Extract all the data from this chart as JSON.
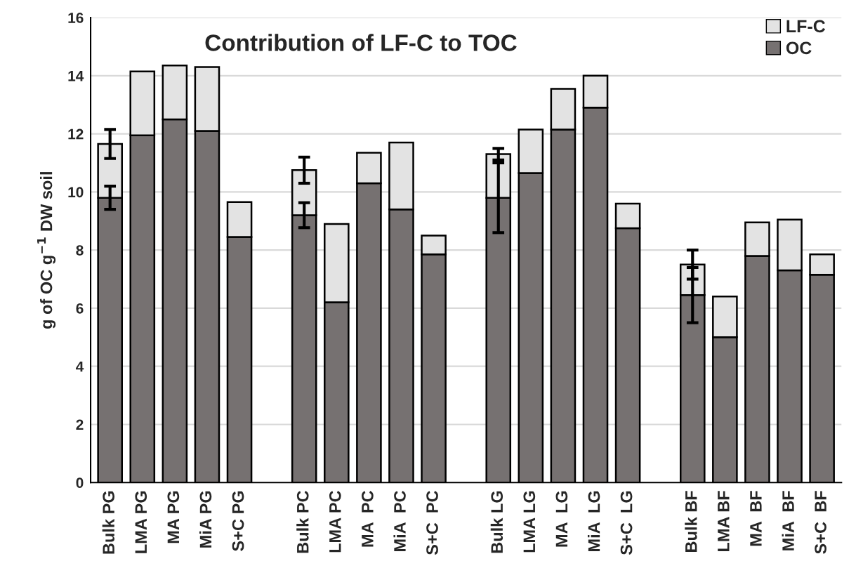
{
  "chart_data": {
    "type": "bar",
    "title": "Contribution of LF-C to TOC",
    "ylabel": "g of OC g$^{−1}$ DW soil",
    "categories": [
      "Bulk PG",
      "LMA PG",
      "MA PG",
      "MiA PG",
      "S+C PG",
      null,
      "Bulk PC",
      "LMA PC",
      "MA  PC",
      "MiA  PC",
      "S+C  PC",
      null,
      "Bulk LG",
      "LMA LG",
      "MA  LG",
      "MiA  LG",
      "S+C  LG",
      null,
      "Bulk BF",
      "LMA BF",
      "MA  BF",
      "MiA  BF",
      "S+C  BF"
    ],
    "stacked": true,
    "series": [
      {
        "name": "OC",
        "color": "#767171",
        "values": [
          9.8,
          11.95,
          12.5,
          12.1,
          8.45,
          null,
          9.2,
          6.2,
          10.3,
          9.4,
          7.85,
          null,
          9.8,
          10.65,
          12.15,
          12.9,
          8.75,
          null,
          6.45,
          5.0,
          7.8,
          7.3,
          7.15
        ],
        "errors": [
          0.4,
          null,
          null,
          null,
          null,
          null,
          0.43,
          null,
          null,
          null,
          null,
          null,
          1.2,
          null,
          null,
          null,
          null,
          null,
          0.95,
          null,
          null,
          null,
          null
        ]
      },
      {
        "name": "LF-C",
        "color": "#e3e3e3",
        "values": [
          1.85,
          2.2,
          1.85,
          2.2,
          1.2,
          null,
          1.55,
          2.7,
          1.05,
          2.3,
          0.65,
          null,
          1.5,
          1.5,
          1.4,
          1.1,
          0.85,
          null,
          1.05,
          1.4,
          1.15,
          1.75,
          0.7
        ],
        "errors": [
          0.5,
          null,
          null,
          null,
          null,
          null,
          0.45,
          null,
          null,
          null,
          null,
          null,
          0.2,
          null,
          null,
          null,
          null,
          null,
          0.5,
          null,
          null,
          null,
          null
        ]
      }
    ],
    "ylim": [
      0,
      16
    ],
    "yticks": [
      0,
      2,
      4,
      6,
      8,
      10,
      12,
      14,
      16
    ],
    "grid": "y",
    "legend": "top right"
  }
}
